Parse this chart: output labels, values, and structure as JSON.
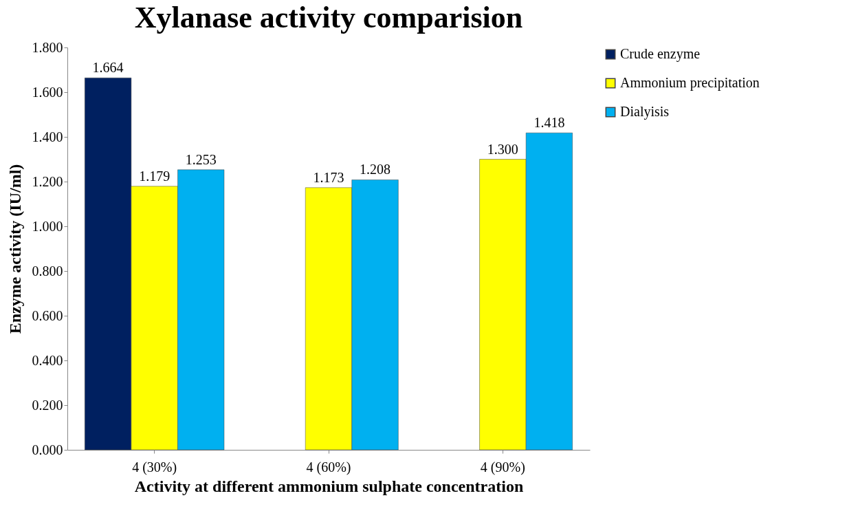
{
  "chart_data": {
    "type": "bar",
    "title": "Xylanase activity comparision",
    "xlabel": "Activity at different ammonium sulphate concentration",
    "ylabel": "Enzyme activity (IU/ml)",
    "categories": [
      "4  (30%)",
      "4  (60%)",
      "4  (90%)"
    ],
    "series": [
      {
        "name": "Crude enzyme",
        "color": "#002060",
        "values": [
          1.664,
          null,
          null
        ],
        "value_labels": [
          "1.664",
          null,
          null
        ]
      },
      {
        "name": "Ammonium precipitation",
        "color": "#ffff00",
        "values": [
          1.179,
          1.173,
          1.3
        ],
        "value_labels": [
          "1.179",
          "1.173",
          "1.300"
        ]
      },
      {
        "name": "Dialyisis",
        "color": "#00b0f0",
        "values": [
          1.253,
          1.208,
          1.418
        ],
        "value_labels": [
          "1.253",
          "1.208",
          "1.418"
        ]
      }
    ],
    "ylim": [
      0,
      1.8
    ],
    "yticks": [
      {
        "value": 0,
        "label": "0.000"
      },
      {
        "value": 0.2,
        "label": "0.200"
      },
      {
        "value": 0.4,
        "label": "0.400"
      },
      {
        "value": 0.6,
        "label": "0.600"
      },
      {
        "value": 0.8,
        "label": "0.800"
      },
      {
        "value": 1,
        "label": "1.000"
      },
      {
        "value": 1.2,
        "label": "1.200"
      },
      {
        "value": 1.4,
        "label": "1.400"
      },
      {
        "value": 1.6,
        "label": "1.600"
      },
      {
        "value": 1.8,
        "label": "1.800"
      }
    ],
    "legend": "right",
    "grid": false
  }
}
